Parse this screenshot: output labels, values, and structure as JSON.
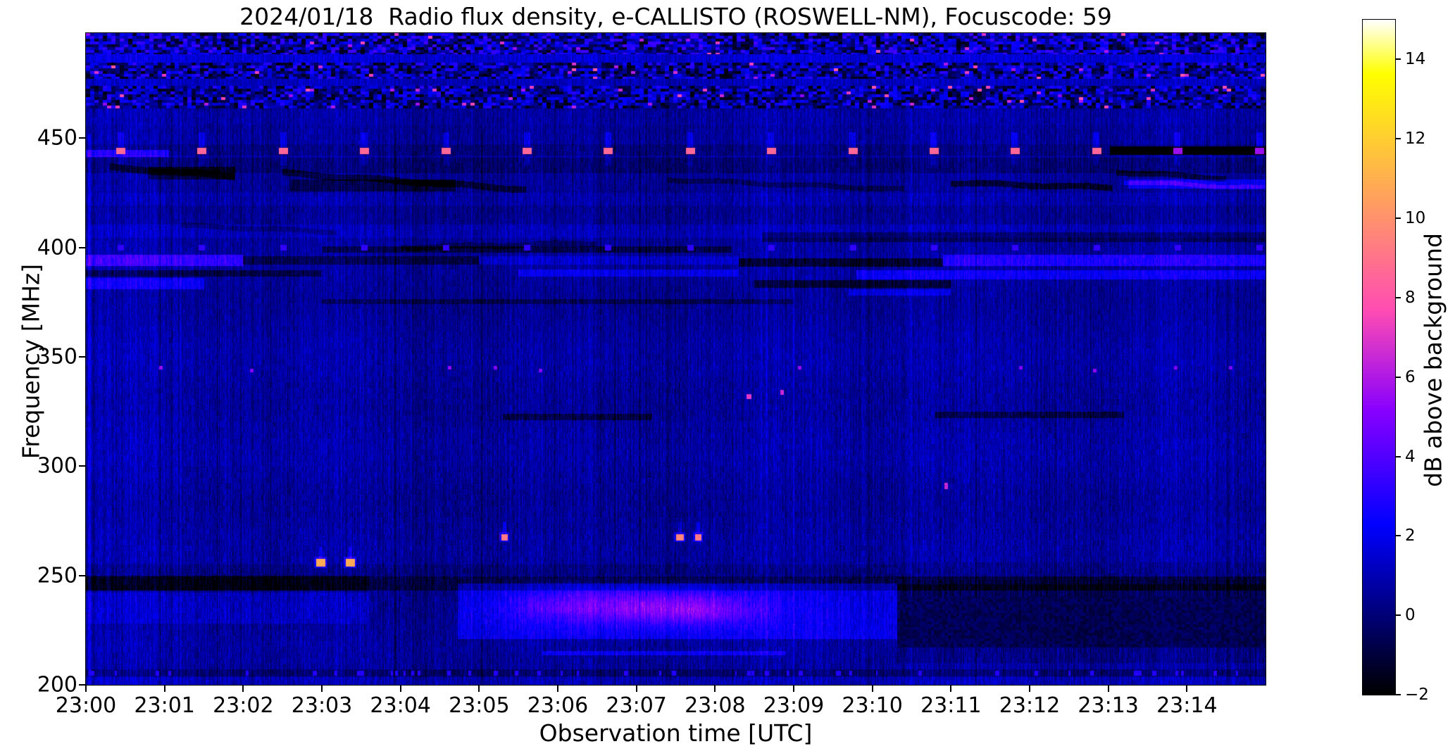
{
  "chart_data": {
    "type": "heatmap",
    "title": "2024/01/18  Radio flux density, e-CALLISTO (ROSWELL-NM), Focuscode: 59",
    "xlabel": "Observation time [UTC]",
    "ylabel": "Frequency [MHz]",
    "x_range_min": [
      0,
      15
    ],
    "x_tick_labels": [
      "23:00",
      "23:01",
      "23:02",
      "23:03",
      "23:04",
      "23:05",
      "23:06",
      "23:07",
      "23:08",
      "23:09",
      "23:10",
      "23:11",
      "23:12",
      "23:13",
      "23:14"
    ],
    "y_range_mhz": [
      200,
      498
    ],
    "y_ticks_mhz": [
      200,
      250,
      300,
      350,
      400,
      450
    ],
    "grid": false,
    "colorbar": {
      "label": "dB above background",
      "range_db": [
        -2,
        15
      ],
      "ticks_db": [
        -2,
        0,
        2,
        4,
        6,
        8,
        10,
        12,
        14
      ],
      "tick_labels": [
        "−2",
        "0",
        "2",
        "4",
        "6",
        "8",
        "10",
        "12",
        "14"
      ],
      "colormap": "gnuplot2",
      "background_blue": "#00008c",
      "bright_blue": "#1a00ff",
      "magenta": "#ff69a0",
      "orange": "#ff9955"
    },
    "noise": {
      "base_db": 0.6,
      "column_variation_db": 1.0,
      "pixel_noise_db": 0.95,
      "sparkle_db": 2.3
    },
    "rfi_strips": [
      [
        488.5,
        498,
        5.6,
        0.01
      ],
      [
        477.0,
        484.5,
        5.2,
        0.015
      ],
      [
        463.5,
        474.0,
        5.0,
        0.025
      ]
    ],
    "bands": [
      [
        0,
        15,
        442,
        447,
        -0.5
      ],
      [
        0,
        1.06,
        441.5,
        444.5,
        2.4
      ],
      [
        0,
        15,
        434,
        441,
        -0.7
      ],
      [
        0.8,
        1.9,
        431,
        437,
        -1.5
      ],
      [
        2.6,
        4.7,
        425.5,
        431,
        -1.3
      ],
      [
        0,
        15,
        419,
        425,
        0.4
      ],
      [
        13.25,
        15,
        427,
        431,
        1.6
      ],
      [
        0,
        15,
        404.5,
        410.5,
        0.5
      ],
      [
        8.6,
        15,
        402.5,
        407,
        -1.2
      ],
      [
        0,
        2.0,
        391.5,
        396.5,
        2.6
      ],
      [
        2.0,
        5.0,
        392,
        396,
        -1.3
      ],
      [
        5.0,
        8.3,
        392,
        396,
        0.8
      ],
      [
        8.3,
        10.9,
        391,
        395,
        -1.9
      ],
      [
        10.9,
        15,
        391.5,
        396.5,
        2.2
      ],
      [
        0,
        3.0,
        386.5,
        389.5,
        -1.4
      ],
      [
        0,
        1.5,
        381,
        386,
        1.7
      ],
      [
        5.5,
        8.3,
        386.5,
        390,
        1.4
      ],
      [
        9.8,
        15,
        385.5,
        389.5,
        1.7
      ],
      [
        8.5,
        11.0,
        381.5,
        385,
        -1.7
      ],
      [
        9.7,
        11.0,
        378,
        381,
        1.3
      ],
      [
        3.0,
        8.2,
        397.5,
        400.5,
        -1.4
      ],
      [
        3.0,
        9.0,
        374,
        376.5,
        -1.1
      ],
      [
        5.3,
        7.2,
        321,
        324,
        -1.4
      ],
      [
        10.8,
        13.2,
        322,
        325,
        -1.4
      ],
      [
        0,
        15,
        243,
        249.5,
        -1.2
      ],
      [
        0,
        3.6,
        243,
        250,
        -1.1
      ],
      [
        0,
        3.6,
        228,
        242,
        0.7
      ],
      [
        4.73,
        10.32,
        221,
        246.5,
        1.5
      ],
      [
        5.8,
        8.9,
        213.5,
        215.5,
        1.6
      ],
      [
        0,
        15,
        204,
        207,
        -0.7
      ],
      [
        0,
        15,
        200,
        203.5,
        0.5
      ],
      [
        0,
        15,
        484.5,
        488.5,
        0.8
      ],
      [
        0,
        15,
        474,
        477,
        0.5
      ],
      [
        0,
        10.32,
        249.5,
        255,
        -0.4
      ],
      [
        0,
        15,
        456,
        463,
        0.2
      ]
    ],
    "diag_streaks": [
      [
        0.3,
        436.5,
        1.9,
        432.5,
        1.6,
        -1.3
      ],
      [
        2.5,
        434,
        5.6,
        426.5,
        1.5,
        -1.4
      ],
      [
        7.4,
        431,
        10.4,
        426.5,
        1.2,
        -1.0
      ],
      [
        11.0,
        429.5,
        13.05,
        427.3,
        1.4,
        -1.7
      ],
      [
        13.1,
        434.5,
        14.5,
        431.5,
        1.3,
        -1.6
      ],
      [
        13.2,
        430,
        15,
        427,
        1.0,
        1.5
      ],
      [
        1.2,
        410,
        3.2,
        407,
        1.2,
        -0.8
      ],
      [
        4.0,
        399.9,
        6.5,
        402,
        1.3,
        -0.9
      ]
    ],
    "blobs": [
      [
        7.1,
        236,
        0.95,
        6.0,
        3.1
      ],
      [
        7.9,
        233.5,
        0.5,
        4.0,
        1.2
      ],
      [
        5.9,
        236,
        0.5,
        5.0,
        0.8
      ]
    ],
    "cal_pulses": {
      "times_min": [
        0.44,
        1.47,
        2.51,
        3.54,
        4.58,
        5.61,
        6.64,
        7.68,
        8.71,
        9.75,
        10.78,
        11.81,
        12.85,
        13.88,
        14.92
      ],
      "freq_mhz": 444,
      "pulse_db": 8.6,
      "purple_db": 5.6,
      "gap_start_min": 13.02,
      "gap_db": -2
    },
    "blue_pulses": {
      "freq_mhz": 399.8,
      "pulse_db": 3.3
    },
    "specks": [
      [
        2.98,
        256,
        10.8,
        12,
        9
      ],
      [
        3.36,
        256,
        10.8,
        12,
        9
      ],
      [
        5.32,
        267.5,
        9.2,
        8,
        7
      ],
      [
        7.55,
        267.5,
        9.6,
        9,
        7
      ],
      [
        7.78,
        267.5,
        9.2,
        8,
        7
      ],
      [
        8.43,
        332,
        7,
        5,
        6
      ],
      [
        8.85,
        334,
        6.5,
        4,
        5
      ],
      [
        10.93,
        291,
        6.5,
        3,
        8
      ],
      [
        0.95,
        345,
        5.5,
        3,
        4
      ],
      [
        2.1,
        344,
        5,
        3,
        4
      ],
      [
        4.62,
        345,
        5.5,
        3,
        4
      ],
      [
        5.2,
        345,
        5,
        3,
        4
      ],
      [
        5.78,
        344,
        5,
        3,
        4
      ],
      [
        9.07,
        345,
        5.5,
        3,
        4
      ],
      [
        11.88,
        345,
        5,
        3,
        4
      ],
      [
        12.82,
        344,
        5.5,
        3,
        4
      ],
      [
        13.85,
        345,
        5,
        3,
        4
      ],
      [
        14.55,
        345,
        5,
        3,
        4
      ]
    ],
    "dark_box": {
      "t_start_min": 10.32,
      "f_core": [
        217,
        240
      ],
      "f_mid": [
        240,
        246
      ],
      "f_soft": [
        246,
        256
      ],
      "f_low": [
        210,
        217
      ]
    },
    "dark_columns_min": [
      0.92,
      3.92,
      5.02,
      7.03,
      11.3
    ],
    "bright_column_min": 0.03,
    "bottom_dashes": {
      "f0": 204.3,
      "f1": 206.5,
      "count": 55,
      "db": 3.0
    }
  }
}
